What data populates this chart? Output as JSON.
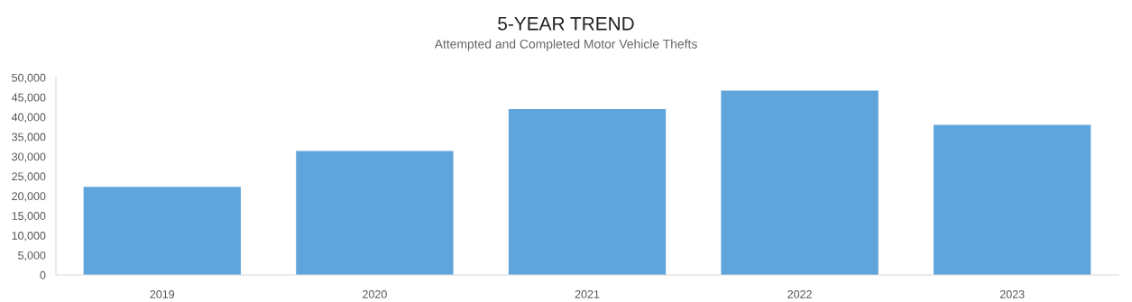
{
  "chart_data": {
    "type": "bar",
    "title": "5-YEAR TREND",
    "subtitle": "Attempted and Completed Motor Vehicle Thefts",
    "categories": [
      "2019",
      "2020",
      "2021",
      "2022",
      "2023"
    ],
    "values": [
      22300,
      31400,
      42000,
      46700,
      38000
    ],
    "color": "#5fa4db",
    "ylim": [
      0,
      50000
    ],
    "yticks": [
      {
        "value": 0,
        "label": "0"
      },
      {
        "value": 5000,
        "label": "5,000"
      },
      {
        "value": 10000,
        "label": "10,000"
      },
      {
        "value": 15000,
        "label": "15,000"
      },
      {
        "value": 20000,
        "label": "20,000"
      },
      {
        "value": 25000,
        "label": "25,000"
      },
      {
        "value": 30000,
        "label": "30,000"
      },
      {
        "value": 35000,
        "label": "35,000"
      },
      {
        "value": 40000,
        "label": "40,000"
      },
      {
        "value": 45000,
        "label": "45,000"
      },
      {
        "value": 50000,
        "label": "50,000"
      }
    ],
    "grid": false,
    "legend": false
  }
}
